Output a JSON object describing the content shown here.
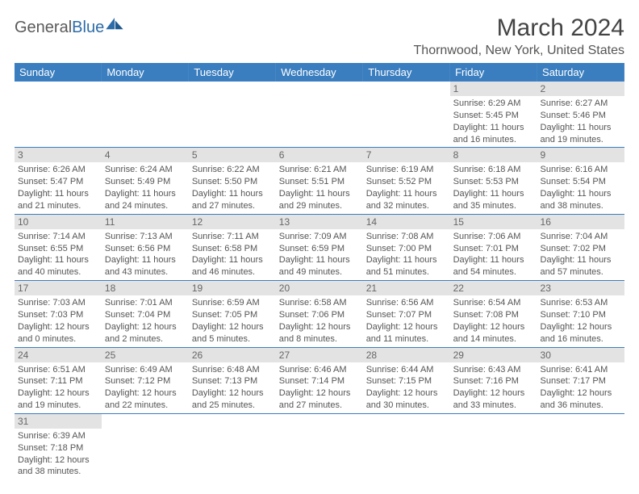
{
  "brand": {
    "part1": "General",
    "part2": "Blue",
    "text_color": "#5a5a5a",
    "accent_color": "#2c6ca8"
  },
  "title": "March 2024",
  "location": "Thornwood, New York, United States",
  "header_bg": "#3a7ebf",
  "header_fg": "#ffffff",
  "daynum_bg": "#e3e3e3",
  "border_color": "#3a7ebf",
  "weekdays": [
    "Sunday",
    "Monday",
    "Tuesday",
    "Wednesday",
    "Thursday",
    "Friday",
    "Saturday"
  ],
  "cells": [
    {
      "r": 0,
      "c": 5,
      "day": "1",
      "sunrise": "Sunrise: 6:29 AM",
      "sunset": "Sunset: 5:45 PM",
      "daylight": "Daylight: 11 hours and 16 minutes."
    },
    {
      "r": 0,
      "c": 6,
      "day": "2",
      "sunrise": "Sunrise: 6:27 AM",
      "sunset": "Sunset: 5:46 PM",
      "daylight": "Daylight: 11 hours and 19 minutes."
    },
    {
      "r": 1,
      "c": 0,
      "day": "3",
      "sunrise": "Sunrise: 6:26 AM",
      "sunset": "Sunset: 5:47 PM",
      "daylight": "Daylight: 11 hours and 21 minutes."
    },
    {
      "r": 1,
      "c": 1,
      "day": "4",
      "sunrise": "Sunrise: 6:24 AM",
      "sunset": "Sunset: 5:49 PM",
      "daylight": "Daylight: 11 hours and 24 minutes."
    },
    {
      "r": 1,
      "c": 2,
      "day": "5",
      "sunrise": "Sunrise: 6:22 AM",
      "sunset": "Sunset: 5:50 PM",
      "daylight": "Daylight: 11 hours and 27 minutes."
    },
    {
      "r": 1,
      "c": 3,
      "day": "6",
      "sunrise": "Sunrise: 6:21 AM",
      "sunset": "Sunset: 5:51 PM",
      "daylight": "Daylight: 11 hours and 29 minutes."
    },
    {
      "r": 1,
      "c": 4,
      "day": "7",
      "sunrise": "Sunrise: 6:19 AM",
      "sunset": "Sunset: 5:52 PM",
      "daylight": "Daylight: 11 hours and 32 minutes."
    },
    {
      "r": 1,
      "c": 5,
      "day": "8",
      "sunrise": "Sunrise: 6:18 AM",
      "sunset": "Sunset: 5:53 PM",
      "daylight": "Daylight: 11 hours and 35 minutes."
    },
    {
      "r": 1,
      "c": 6,
      "day": "9",
      "sunrise": "Sunrise: 6:16 AM",
      "sunset": "Sunset: 5:54 PM",
      "daylight": "Daylight: 11 hours and 38 minutes."
    },
    {
      "r": 2,
      "c": 0,
      "day": "10",
      "sunrise": "Sunrise: 7:14 AM",
      "sunset": "Sunset: 6:55 PM",
      "daylight": "Daylight: 11 hours and 40 minutes."
    },
    {
      "r": 2,
      "c": 1,
      "day": "11",
      "sunrise": "Sunrise: 7:13 AM",
      "sunset": "Sunset: 6:56 PM",
      "daylight": "Daylight: 11 hours and 43 minutes."
    },
    {
      "r": 2,
      "c": 2,
      "day": "12",
      "sunrise": "Sunrise: 7:11 AM",
      "sunset": "Sunset: 6:58 PM",
      "daylight": "Daylight: 11 hours and 46 minutes."
    },
    {
      "r": 2,
      "c": 3,
      "day": "13",
      "sunrise": "Sunrise: 7:09 AM",
      "sunset": "Sunset: 6:59 PM",
      "daylight": "Daylight: 11 hours and 49 minutes."
    },
    {
      "r": 2,
      "c": 4,
      "day": "14",
      "sunrise": "Sunrise: 7:08 AM",
      "sunset": "Sunset: 7:00 PM",
      "daylight": "Daylight: 11 hours and 51 minutes."
    },
    {
      "r": 2,
      "c": 5,
      "day": "15",
      "sunrise": "Sunrise: 7:06 AM",
      "sunset": "Sunset: 7:01 PM",
      "daylight": "Daylight: 11 hours and 54 minutes."
    },
    {
      "r": 2,
      "c": 6,
      "day": "16",
      "sunrise": "Sunrise: 7:04 AM",
      "sunset": "Sunset: 7:02 PM",
      "daylight": "Daylight: 11 hours and 57 minutes."
    },
    {
      "r": 3,
      "c": 0,
      "day": "17",
      "sunrise": "Sunrise: 7:03 AM",
      "sunset": "Sunset: 7:03 PM",
      "daylight": "Daylight: 12 hours and 0 minutes."
    },
    {
      "r": 3,
      "c": 1,
      "day": "18",
      "sunrise": "Sunrise: 7:01 AM",
      "sunset": "Sunset: 7:04 PM",
      "daylight": "Daylight: 12 hours and 2 minutes."
    },
    {
      "r": 3,
      "c": 2,
      "day": "19",
      "sunrise": "Sunrise: 6:59 AM",
      "sunset": "Sunset: 7:05 PM",
      "daylight": "Daylight: 12 hours and 5 minutes."
    },
    {
      "r": 3,
      "c": 3,
      "day": "20",
      "sunrise": "Sunrise: 6:58 AM",
      "sunset": "Sunset: 7:06 PM",
      "daylight": "Daylight: 12 hours and 8 minutes."
    },
    {
      "r": 3,
      "c": 4,
      "day": "21",
      "sunrise": "Sunrise: 6:56 AM",
      "sunset": "Sunset: 7:07 PM",
      "daylight": "Daylight: 12 hours and 11 minutes."
    },
    {
      "r": 3,
      "c": 5,
      "day": "22",
      "sunrise": "Sunrise: 6:54 AM",
      "sunset": "Sunset: 7:08 PM",
      "daylight": "Daylight: 12 hours and 14 minutes."
    },
    {
      "r": 3,
      "c": 6,
      "day": "23",
      "sunrise": "Sunrise: 6:53 AM",
      "sunset": "Sunset: 7:10 PM",
      "daylight": "Daylight: 12 hours and 16 minutes."
    },
    {
      "r": 4,
      "c": 0,
      "day": "24",
      "sunrise": "Sunrise: 6:51 AM",
      "sunset": "Sunset: 7:11 PM",
      "daylight": "Daylight: 12 hours and 19 minutes."
    },
    {
      "r": 4,
      "c": 1,
      "day": "25",
      "sunrise": "Sunrise: 6:49 AM",
      "sunset": "Sunset: 7:12 PM",
      "daylight": "Daylight: 12 hours and 22 minutes."
    },
    {
      "r": 4,
      "c": 2,
      "day": "26",
      "sunrise": "Sunrise: 6:48 AM",
      "sunset": "Sunset: 7:13 PM",
      "daylight": "Daylight: 12 hours and 25 minutes."
    },
    {
      "r": 4,
      "c": 3,
      "day": "27",
      "sunrise": "Sunrise: 6:46 AM",
      "sunset": "Sunset: 7:14 PM",
      "daylight": "Daylight: 12 hours and 27 minutes."
    },
    {
      "r": 4,
      "c": 4,
      "day": "28",
      "sunrise": "Sunrise: 6:44 AM",
      "sunset": "Sunset: 7:15 PM",
      "daylight": "Daylight: 12 hours and 30 minutes."
    },
    {
      "r": 4,
      "c": 5,
      "day": "29",
      "sunrise": "Sunrise: 6:43 AM",
      "sunset": "Sunset: 7:16 PM",
      "daylight": "Daylight: 12 hours and 33 minutes."
    },
    {
      "r": 4,
      "c": 6,
      "day": "30",
      "sunrise": "Sunrise: 6:41 AM",
      "sunset": "Sunset: 7:17 PM",
      "daylight": "Daylight: 12 hours and 36 minutes."
    },
    {
      "r": 5,
      "c": 0,
      "day": "31",
      "sunrise": "Sunrise: 6:39 AM",
      "sunset": "Sunset: 7:18 PM",
      "daylight": "Daylight: 12 hours and 38 minutes."
    }
  ],
  "rows": 6,
  "cols": 7
}
